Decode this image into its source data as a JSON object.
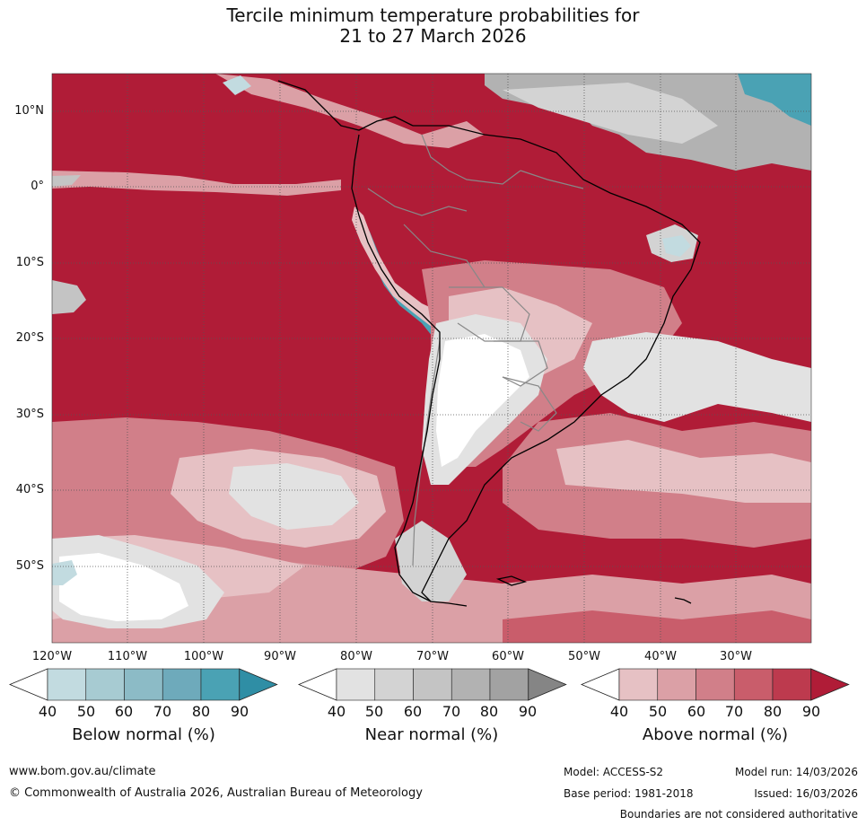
{
  "title": {
    "line1": "Tercile minimum temperature probabilities for",
    "line2": "21 to 27 March 2026"
  },
  "map": {
    "latitude_labels": [
      "10°N",
      "0°",
      "10°S",
      "20°S",
      "30°S",
      "40°S",
      "50°S"
    ],
    "longitude_labels": [
      "120°W",
      "110°W",
      "100°W",
      "90°W",
      "80°W",
      "70°W",
      "60°W",
      "50°W",
      "40°W",
      "30°W"
    ],
    "colors": {
      "above_90": "#b01c37",
      "above_80": "#bd3a4e",
      "above_70": "#c95d6b",
      "above_60": "#d17f89",
      "above_50": "#dba0a6",
      "above_40": "#e6c1c4",
      "near_40": "#e2e2e2",
      "near_50": "#d3d3d3",
      "near_60": "#c4c4c4",
      "near_70": "#b2b2b2",
      "near_80": "#a2a2a2",
      "near_90": "#858585",
      "below_40": "#c2dbe0",
      "below_80": "#4aa2b4",
      "below_90": "#2f8ea5",
      "land_outline": "#000000",
      "border": "#888888",
      "gridline": "#555555"
    }
  },
  "legends": [
    {
      "name": "Below normal (%)",
      "ticks": [
        "40",
        "50",
        "60",
        "70",
        "80",
        "90"
      ],
      "colors": [
        "#ffffff",
        "#c2dbe0",
        "#a7cbd2",
        "#8cbbc6",
        "#6eaabb",
        "#4aa2b4",
        "#2f8ea5"
      ]
    },
    {
      "name": "Near normal (%)",
      "ticks": [
        "40",
        "50",
        "60",
        "70",
        "80",
        "90"
      ],
      "colors": [
        "#ffffff",
        "#e2e2e2",
        "#d3d3d3",
        "#c4c4c4",
        "#b2b2b2",
        "#a2a2a2",
        "#858585"
      ]
    },
    {
      "name": "Above normal (%)",
      "ticks": [
        "40",
        "50",
        "60",
        "70",
        "80",
        "90"
      ],
      "colors": [
        "#ffffff",
        "#e6c1c4",
        "#dba0a6",
        "#d17f89",
        "#c95d6b",
        "#bd3a4e",
        "#b01c37"
      ]
    }
  ],
  "footer": {
    "website": "www.bom.gov.au/climate",
    "copyright": "© Commonwealth of Australia 2026, Australian Bureau of Meteorology",
    "model": "Model: ACCESS-S2",
    "model_run": "Model run: 14/03/2026",
    "base_period": "Base period: 1981-2018",
    "issued": "Issued: 16/03/2026",
    "disclaimer": "Boundaries are not considered authoritative"
  }
}
